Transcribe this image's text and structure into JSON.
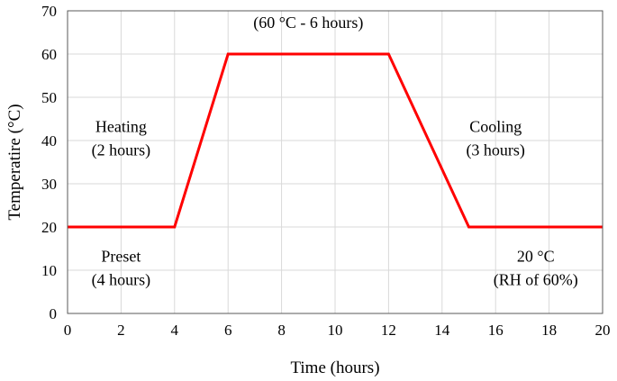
{
  "chart_data": {
    "type": "line",
    "title": "",
    "xlabel": "Time (hours)",
    "ylabel": "Temperatire (°C)",
    "xlim": [
      0,
      20
    ],
    "ylim": [
      0,
      70
    ],
    "x_ticks": [
      0,
      2,
      4,
      6,
      8,
      10,
      12,
      14,
      16,
      18,
      20
    ],
    "y_ticks": [
      0,
      10,
      20,
      30,
      40,
      50,
      60,
      70
    ],
    "x_tick_labels": [
      "0",
      "2",
      "4",
      "6",
      "8",
      "10",
      "12",
      "14",
      "16",
      "18",
      "20"
    ],
    "y_tick_labels": [
      "0",
      "10",
      "20",
      "30",
      "40",
      "50",
      "60",
      "70"
    ],
    "grid": true,
    "legend": "none",
    "series": [
      {
        "color": "#ff0000",
        "x": [
          0,
          4,
          6,
          12,
          15,
          20
        ],
        "y": [
          20,
          20,
          60,
          60,
          20,
          20
        ]
      }
    ],
    "annotations": [
      {
        "id": "hold",
        "lines": [
          "(60 °C - 6 hours)"
        ],
        "x": 9,
        "y": 66
      },
      {
        "id": "heating",
        "lines": [
          "Heating",
          "(2 hours)"
        ],
        "x": 2,
        "y": 42
      },
      {
        "id": "cooling",
        "lines": [
          "Cooling",
          "(3 hours)"
        ],
        "x": 16,
        "y": 42
      },
      {
        "id": "preset",
        "lines": [
          "Preset",
          "(4 hours)"
        ],
        "x": 2,
        "y": 12
      },
      {
        "id": "final",
        "lines": [
          "20 °C",
          "(RH of 60%)"
        ],
        "x": 17.5,
        "y": 12
      }
    ]
  }
}
